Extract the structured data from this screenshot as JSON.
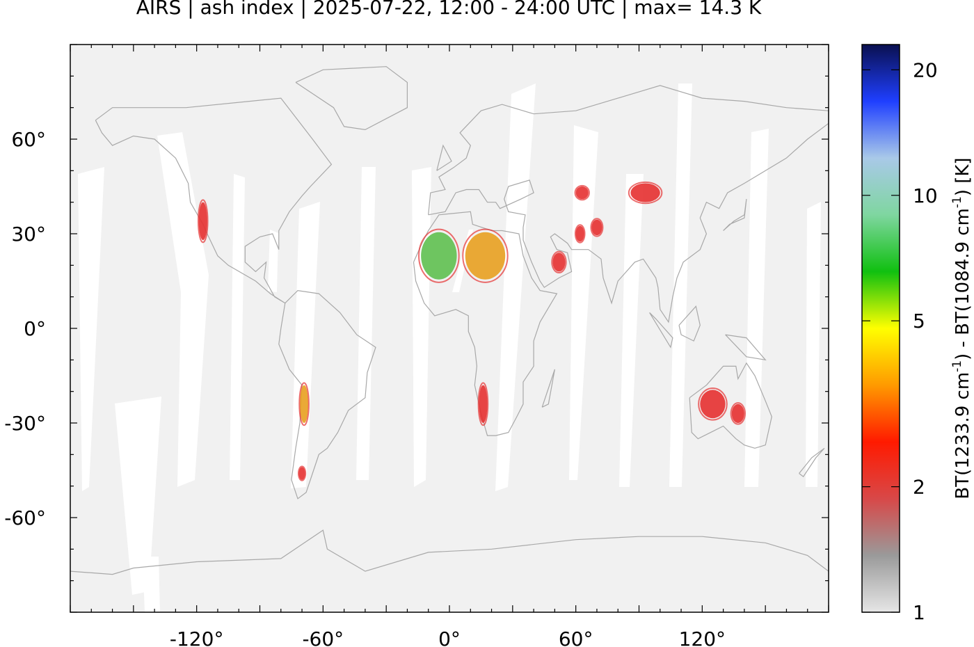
{
  "title": "AIRS | ash index | 2025-07-22, 12:00 - 24:00 UTC | max= 14.3 K",
  "map": {
    "projection": "equirectangular",
    "lon_range": [
      -180,
      180
    ],
    "lat_range": [
      -90,
      90
    ],
    "background": "#f1f1f1",
    "swath_gap_color": "#ffffff",
    "coastline_color": "#a8a8a8"
  },
  "x_ticks": [
    {
      "value": -120,
      "label": "-120°"
    },
    {
      "value": -60,
      "label": "-60°"
    },
    {
      "value": 0,
      "label": "0°"
    },
    {
      "value": 60,
      "label": "60°"
    },
    {
      "value": 120,
      "label": "120°"
    }
  ],
  "y_ticks": [
    {
      "value": 60,
      "label": "60°"
    },
    {
      "value": 30,
      "label": "30°"
    },
    {
      "value": 0,
      "label": "0°"
    },
    {
      "value": -30,
      "label": "-30°"
    },
    {
      "value": -60,
      "label": "-60°"
    }
  ],
  "colorbar": {
    "label_main": "BT(1233.9 cm",
    "label_sup": "-1",
    "label_mid": ") - BT(1084.9 cm",
    "label_end": ") [K]",
    "range": [
      1,
      23
    ],
    "scale": "log",
    "ticks": [
      {
        "value": 1,
        "label": "1"
      },
      {
        "value": 2,
        "label": "2"
      },
      {
        "value": 5,
        "label": "5"
      },
      {
        "value": 10,
        "label": "10"
      },
      {
        "value": 20,
        "label": "20"
      }
    ],
    "stops": [
      "#e6e6e6",
      "#9a9a9a",
      "#d84848",
      "#ff1a00",
      "#ff9a00",
      "#ffff00",
      "#10c010",
      "#7fd6a0",
      "#a9c9e8",
      "#1f3fff",
      "#0a1050"
    ]
  },
  "ash_regions": [
    {
      "name": "western-north-america",
      "lon": -117,
      "lat": 34,
      "w": 4,
      "h": 12,
      "color": "#e53030"
    },
    {
      "name": "sahara-west",
      "lon": -5,
      "lat": 23,
      "w": 17,
      "h": 15,
      "color": "#5fc050"
    },
    {
      "name": "sahara-east",
      "lon": 17,
      "lat": 23,
      "w": 19,
      "h": 15,
      "color": "#e8a020"
    },
    {
      "name": "arabia",
      "lon": 52,
      "lat": 21,
      "w": 6,
      "h": 6,
      "color": "#e53030"
    },
    {
      "name": "central-asia",
      "lon": 63,
      "lat": 43,
      "w": 6,
      "h": 4,
      "color": "#e53030"
    },
    {
      "name": "iran",
      "lon": 62,
      "lat": 30,
      "w": 4,
      "h": 5,
      "color": "#e53030"
    },
    {
      "name": "pakistan",
      "lon": 70,
      "lat": 32,
      "w": 5,
      "h": 5,
      "color": "#e53030"
    },
    {
      "name": "mongolia-gobi",
      "lon": 93,
      "lat": 43,
      "w": 14,
      "h": 6,
      "color": "#e53030"
    },
    {
      "name": "atacama",
      "lon": -69,
      "lat": -24,
      "w": 4,
      "h": 12,
      "color": "#e8a020"
    },
    {
      "name": "patagonia",
      "lon": -70,
      "lat": -46,
      "w": 3,
      "h": 4,
      "color": "#e53030"
    },
    {
      "name": "namibia",
      "lon": 16,
      "lat": -24,
      "w": 4,
      "h": 12,
      "color": "#e53030"
    },
    {
      "name": "australia-west",
      "lon": 125,
      "lat": -24,
      "w": 12,
      "h": 9,
      "color": "#e53030"
    },
    {
      "name": "australia-east",
      "lon": 137,
      "lat": -27,
      "w": 6,
      "h": 6,
      "color": "#e53030"
    }
  ]
}
